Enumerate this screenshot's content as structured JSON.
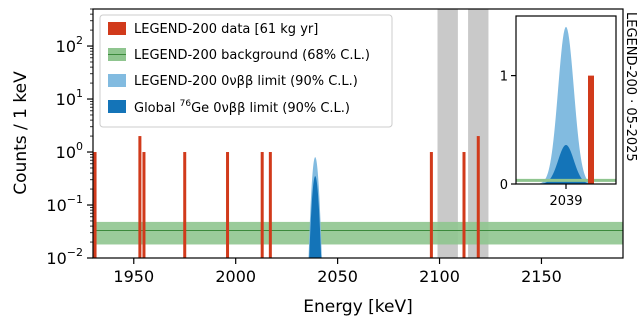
{
  "chart_data": [
    {
      "type": "bar",
      "panel": "main",
      "xlabel": "Energy [keV]",
      "ylabel": "Counts / 1 keV",
      "xlim": [
        1930,
        2190
      ],
      "ylim": [
        0.01,
        500
      ],
      "yscale": "log",
      "x_ticks": [
        1950,
        2000,
        2050,
        2100,
        2150
      ],
      "y_ticks": [
        {
          "value": 0.01,
          "base": "10",
          "exp": "−2"
        },
        {
          "value": 0.1,
          "base": "10",
          "exp": "−1"
        },
        {
          "value": 1,
          "base": "10",
          "exp": "0"
        },
        {
          "value": 10,
          "base": "10",
          "exp": "1"
        },
        {
          "value": 100,
          "base": "10",
          "exp": "2"
        }
      ],
      "excluded_regions": [
        [
          2099,
          2109
        ],
        [
          2114,
          2124
        ]
      ],
      "background": {
        "central": 0.033,
        "band": [
          0.018,
          0.048
        ]
      },
      "events": [
        {
          "x": 1931,
          "counts": 1
        },
        {
          "x": 1953,
          "counts": 2
        },
        {
          "x": 1955,
          "counts": 1
        },
        {
          "x": 1975,
          "counts": 1
        },
        {
          "x": 1996,
          "counts": 1
        },
        {
          "x": 2013,
          "counts": 1
        },
        {
          "x": 2017,
          "counts": 1
        },
        {
          "x": 2096,
          "counts": 1
        },
        {
          "x": 2112,
          "counts": 1
        },
        {
          "x": 2119,
          "counts": 2
        }
      ],
      "signal": {
        "center": 2039,
        "legend200_peak": 0.8,
        "global_peak": 0.35,
        "sigma": 1.1
      },
      "legend_placement": "top-left",
      "legend": [
        {
          "label": "LEGEND-200 data [61 kg yr]",
          "color": "#d13a1b",
          "kind": "bar"
        },
        {
          "label": "LEGEND-200 background (68% C.L.)",
          "color": "#5aaa5a",
          "kind": "band"
        },
        {
          "label": "LEGEND-200 0νββ limit (90% C.L.)",
          "color": "#82bbe0",
          "kind": "fill"
        },
        {
          "label_pre": "Global ",
          "label_sup": "76",
          "label_post": "Ge 0νββ limit (90% C.L.)",
          "color": "#1474b8",
          "kind": "fill"
        }
      ]
    },
    {
      "type": "bar",
      "panel": "inset",
      "xlim": [
        2032,
        2046
      ],
      "ylim": [
        0,
        1.55
      ],
      "x_ticks": [
        2039
      ],
      "y_ticks": [
        0,
        1
      ],
      "event": {
        "x": 2042.5,
        "counts": 1
      },
      "background": {
        "central": 0.033
      },
      "signal": {
        "center": 2039,
        "legend200_peak": 1.45,
        "global_peak": 0.36,
        "sigma": 1.1
      }
    }
  ],
  "watermark": "LEGEND-200 · 05-2025",
  "colors": {
    "data": "#d13a1b",
    "background_band": "#8fc58f",
    "background_line": "#3c8a3c",
    "legend200_limit": "#82bbe0",
    "global_limit": "#1474b8",
    "excluded": "#c9c9c9",
    "watermark": "#1a3e78"
  }
}
